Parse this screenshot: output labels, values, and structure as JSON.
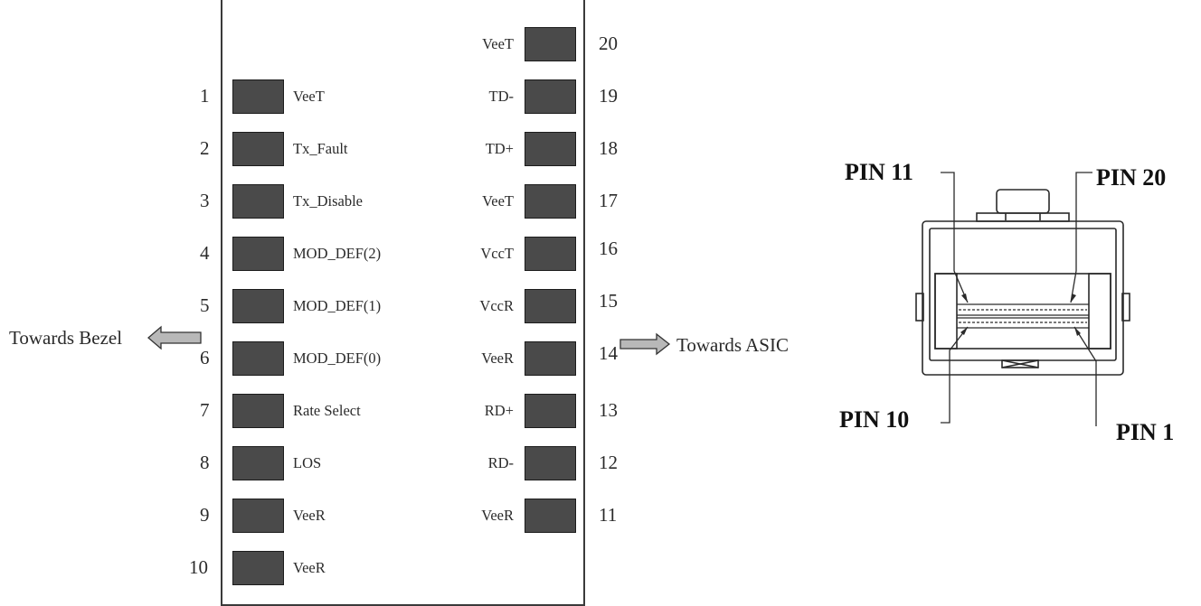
{
  "left_pins": [
    {
      "number": "1",
      "signal": "VeeT"
    },
    {
      "number": "2",
      "signal": "Tx_Fault"
    },
    {
      "number": "3",
      "signal": "Tx_Disable"
    },
    {
      "number": "4",
      "signal": "MOD_DEF(2)"
    },
    {
      "number": "5",
      "signal": "MOD_DEF(1)"
    },
    {
      "number": "6",
      "signal": "MOD_DEF(0)"
    },
    {
      "number": "7",
      "signal": "Rate Select"
    },
    {
      "number": "8",
      "signal": "LOS"
    },
    {
      "number": "9",
      "signal": "VeeR"
    },
    {
      "number": "10",
      "signal": "VeeR"
    }
  ],
  "right_pins": [
    {
      "number": "20",
      "signal": "VeeT"
    },
    {
      "number": "19",
      "signal": "TD-"
    },
    {
      "number": "18",
      "signal": "TD+"
    },
    {
      "number": "17",
      "signal": "VeeT"
    },
    {
      "number": "16",
      "signal": "VccT"
    },
    {
      "number": "15",
      "signal": "VccR"
    },
    {
      "number": "14",
      "signal": "VeeR"
    },
    {
      "number": "13",
      "signal": "RD+"
    },
    {
      "number": "12",
      "signal": "RD-"
    },
    {
      "number": "11",
      "signal": "VeeR"
    }
  ],
  "directions": {
    "bezel": "Towards Bezel",
    "asic": "Towards ASIC"
  },
  "connector_labels": {
    "pin11": "PIN 11",
    "pin20": "PIN 20",
    "pin10": "PIN 10",
    "pin1": "PIN 1"
  }
}
